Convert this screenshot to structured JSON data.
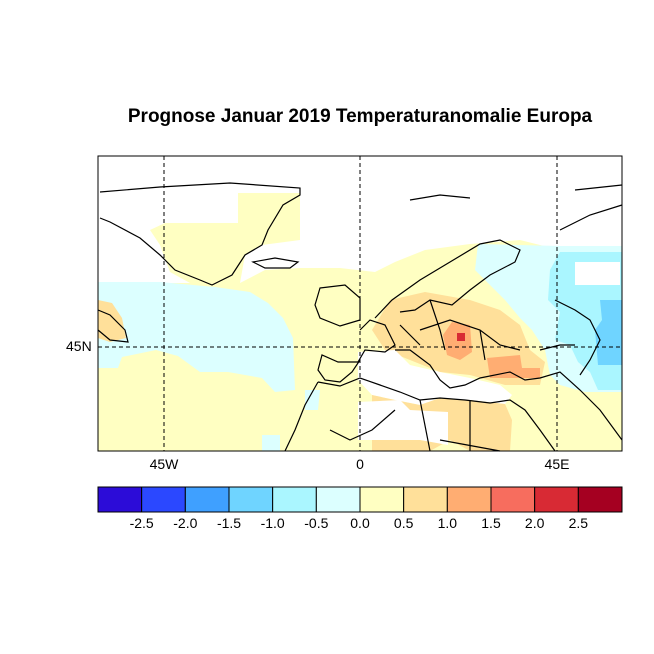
{
  "title": "Prognose Januar 2019 Temperaturanomalie Europa",
  "map": {
    "projection": "lat-lon",
    "lon_range": [
      -60,
      60
    ],
    "x_ticks": [
      "45W",
      "0",
      "45E"
    ],
    "y_ticks": [
      "45N"
    ],
    "gridlines": "dashed"
  },
  "colorbar": {
    "tick_labels": [
      "-2.5",
      "-2.0",
      "-1.5",
      "-1.0",
      "-0.5",
      "0.0",
      "0.5",
      "1.0",
      "1.5",
      "2.0",
      "2.5"
    ],
    "colors": [
      "#2C0CD8",
      "#2B48FF",
      "#3FA0FF",
      "#6FD4FF",
      "#AAF6FF",
      "#DCFFFF",
      "#FFFFC2",
      "#FFE09A",
      "#FFAD72",
      "#F76D5E",
      "#D82A34",
      "#A50021"
    ],
    "no_data_color": "#FFFFFF"
  }
}
